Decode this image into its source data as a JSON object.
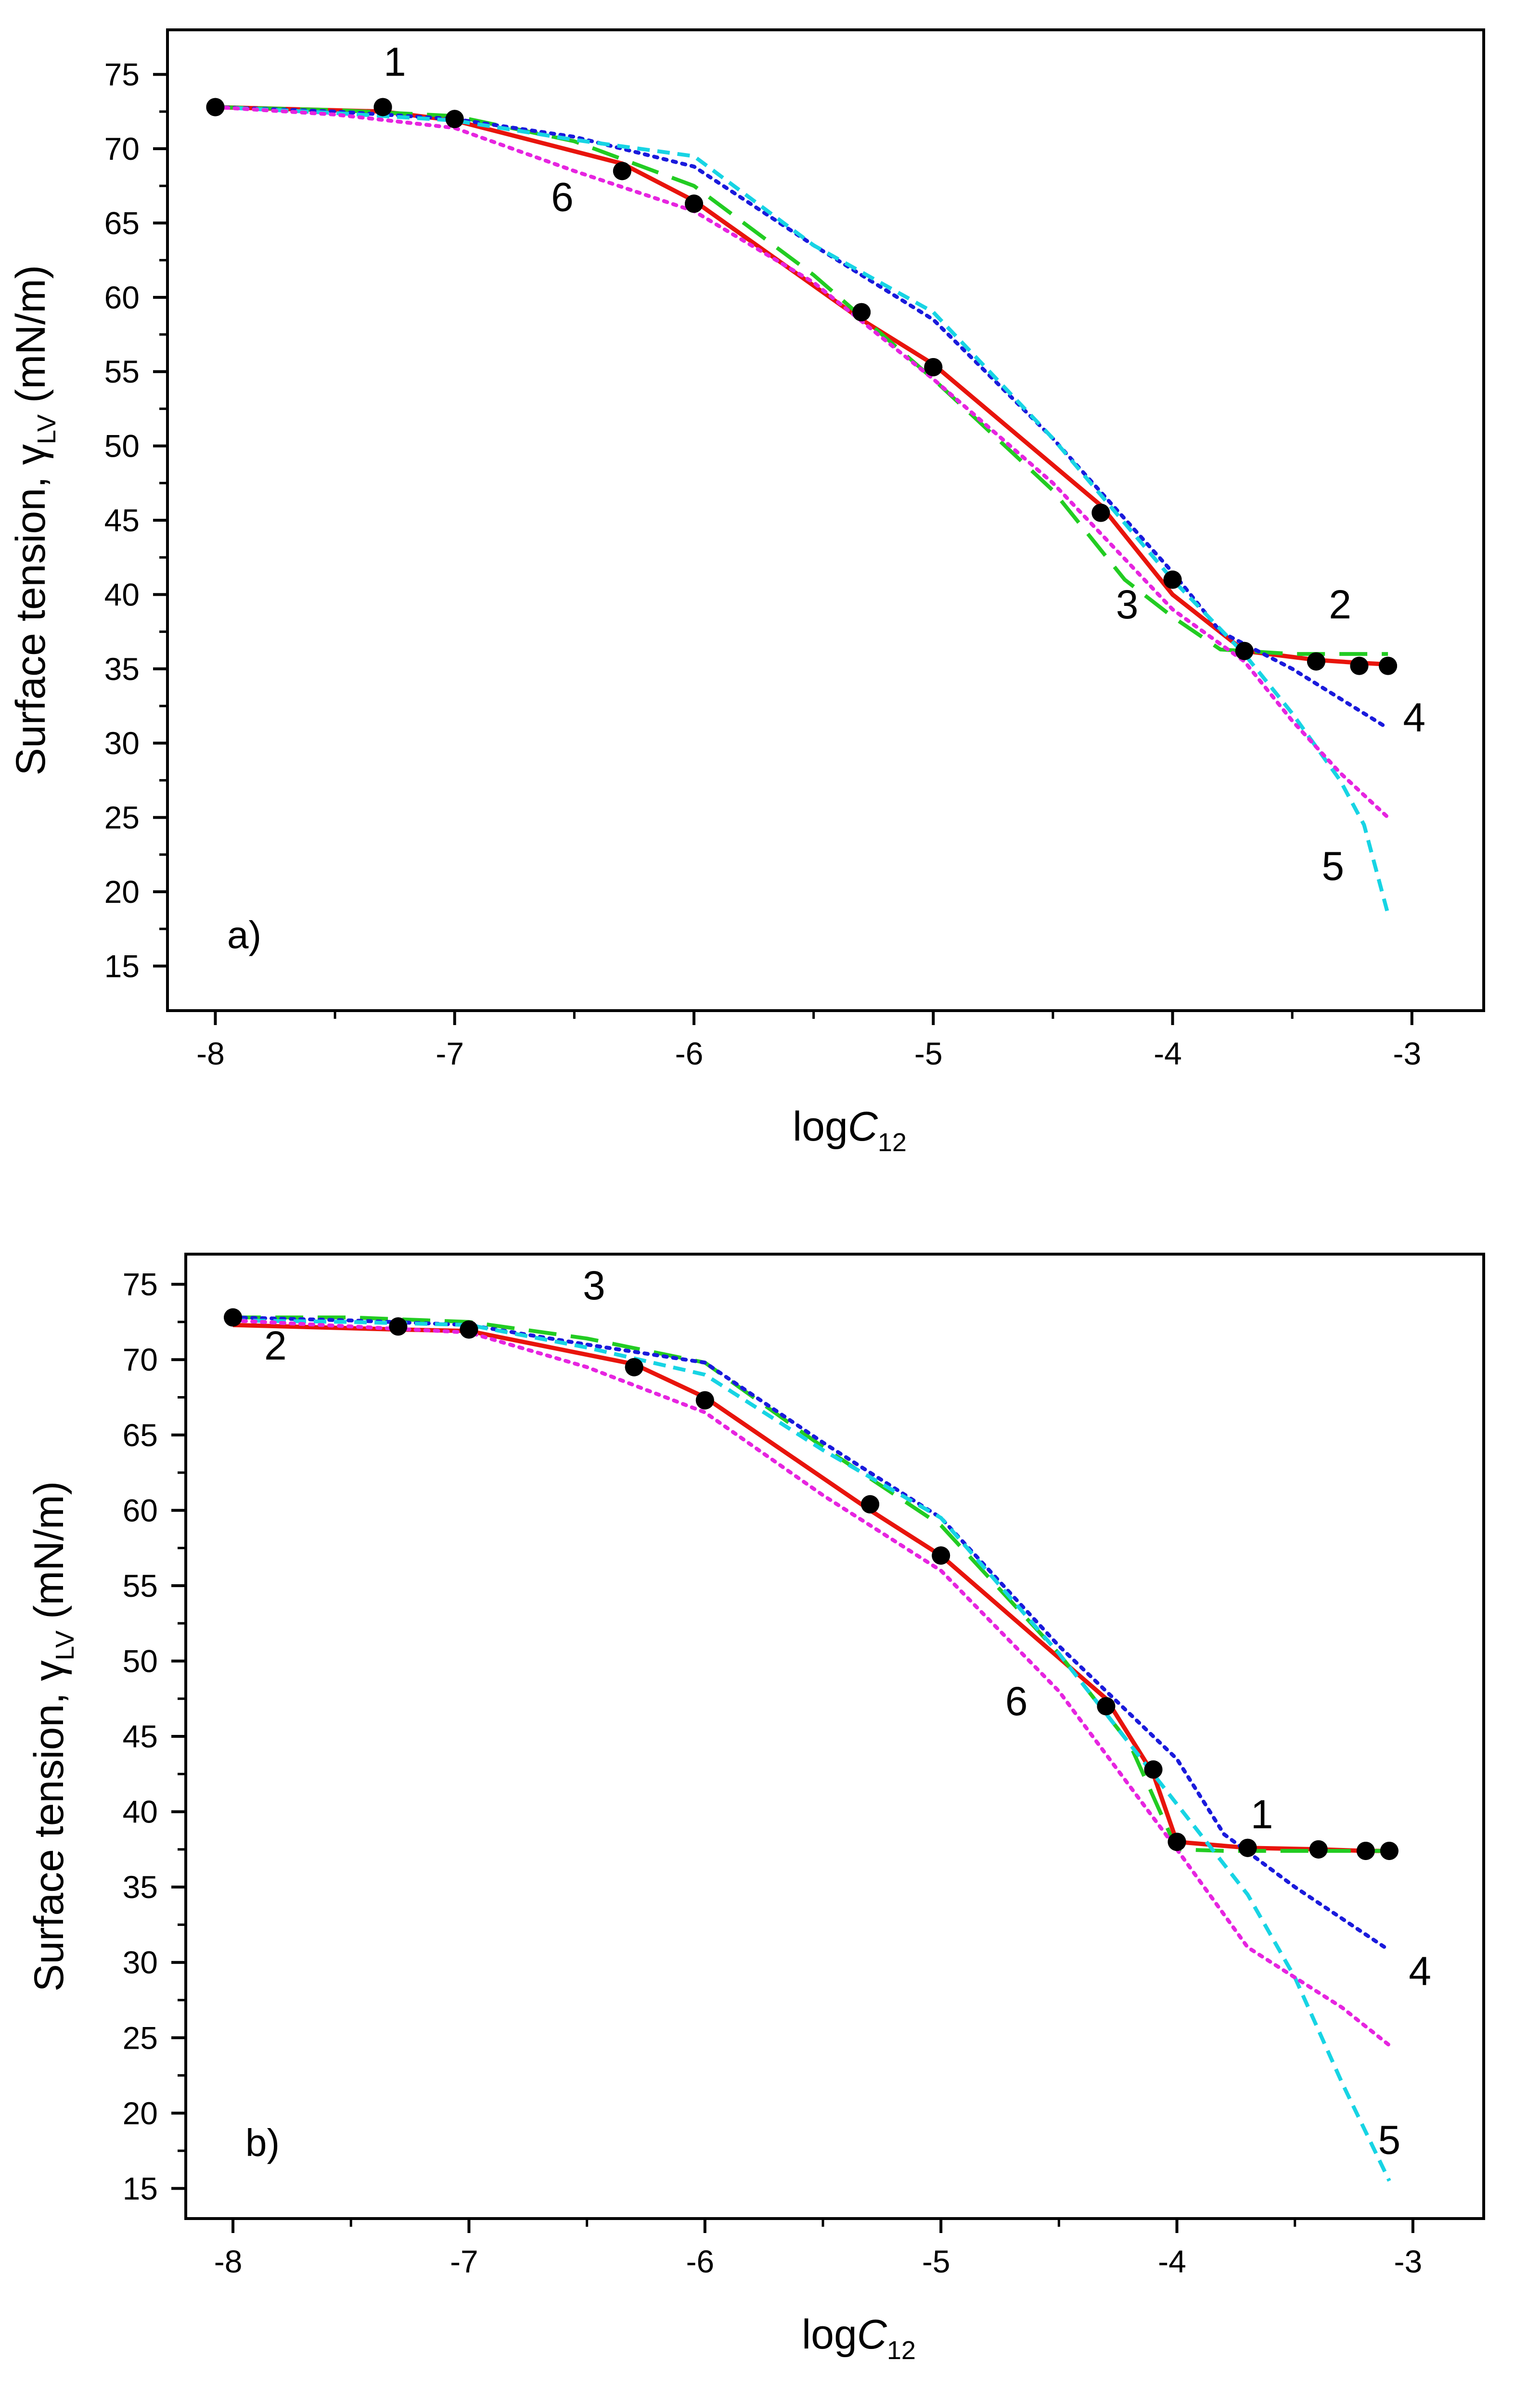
{
  "chart_data": [
    {
      "type": "line",
      "panel_label": "a)",
      "xlabel": {
        "main": "log",
        "italic": "C",
        "sub": "12"
      },
      "ylabel": {
        "main": "Surface tension, γ",
        "sub": "LV",
        "unit": " (mN/m)"
      },
      "xlim": [
        -8.2,
        -2.7
      ],
      "ylim": [
        12,
        78
      ],
      "xticks": [
        -8,
        -7,
        -6,
        -5,
        -4,
        -3
      ],
      "yticks": [
        15,
        20,
        25,
        30,
        35,
        40,
        45,
        50,
        55,
        60,
        65,
        70,
        75
      ],
      "grid": false,
      "series": [
        {
          "name": "1",
          "style": "points",
          "color": "#000000",
          "x": [
            -8,
            -7.3,
            -7,
            -6.3,
            -6,
            -5.3,
            -5,
            -4.3,
            -4,
            -3.7,
            -3.4,
            -3.22,
            -3.1
          ],
          "y": [
            72.8,
            72.8,
            72.0,
            68.5,
            66.3,
            59.0,
            55.3,
            45.5,
            41.0,
            36.2,
            35.5,
            35.2,
            35.2
          ]
        },
        {
          "name": "2",
          "style": "solid",
          "color": "#e8140c",
          "x": [
            -8,
            -7.3,
            -7,
            -6.3,
            -6,
            -5.3,
            -5,
            -4.3,
            -4,
            -3.7,
            -3.4,
            -3.22,
            -3.1
          ],
          "y": [
            72.8,
            72.5,
            71.9,
            69.0,
            66.5,
            58.5,
            55.5,
            46.0,
            40.0,
            36.2,
            35.6,
            35.4,
            35.3
          ]
        },
        {
          "name": "3",
          "style": "longdash",
          "color": "#22cc22",
          "x": [
            -8,
            -7.5,
            -7,
            -6.5,
            -6,
            -5.5,
            -5,
            -4.5,
            -4.2,
            -4.0,
            -3.8,
            -3.5,
            -3.1
          ],
          "y": [
            72.8,
            72.6,
            72.2,
            70.5,
            67.5,
            61.5,
            54.5,
            47.0,
            41.0,
            38.5,
            36.3,
            36.0,
            36.0
          ]
        },
        {
          "name": "4",
          "style": "dot",
          "color": "#1a1adc",
          "x": [
            -8,
            -7.5,
            -7,
            -6.5,
            -6,
            -5.5,
            -5,
            -4.5,
            -4,
            -3.8,
            -3.5,
            -3.1
          ],
          "y": [
            72.8,
            72.5,
            72.0,
            70.8,
            68.8,
            63.5,
            58.5,
            50.5,
            41.5,
            37.5,
            35.0,
            31.0
          ]
        },
        {
          "name": "5",
          "style": "shortdash",
          "color": "#17d4e4",
          "x": [
            -8,
            -7.5,
            -7,
            -6.5,
            -6,
            -5.5,
            -5,
            -4.5,
            -4,
            -3.7,
            -3.5,
            -3.3,
            -3.2,
            -3.1
          ],
          "y": [
            72.8,
            72.4,
            71.9,
            70.6,
            69.5,
            63.5,
            59.0,
            50.5,
            41.0,
            36.0,
            32.0,
            27.5,
            24.5,
            18.5
          ]
        },
        {
          "name": "6",
          "style": "dot",
          "color": "#e624e0",
          "x": [
            -8,
            -7.5,
            -7,
            -6.5,
            -6,
            -5.5,
            -5,
            -4.5,
            -4,
            -3.7,
            -3.5,
            -3.3,
            -3.1
          ],
          "y": [
            72.8,
            72.3,
            71.4,
            68.5,
            65.8,
            61.0,
            54.5,
            47.5,
            39.0,
            35.5,
            31.5,
            28.0,
            25.0
          ]
        }
      ],
      "annotations": [
        {
          "text": "1",
          "x": -7.25,
          "y": 74.9
        },
        {
          "text": "6",
          "x": -6.55,
          "y": 65.8
        },
        {
          "text": "3",
          "x": -4.19,
          "y": 38.4
        },
        {
          "text": "2",
          "x": -3.3,
          "y": 38.4
        },
        {
          "text": "4",
          "x": -2.99,
          "y": 30.8
        },
        {
          "text": "5",
          "x": -3.33,
          "y": 20.8
        }
      ]
    },
    {
      "type": "line",
      "panel_label": "b)",
      "xlabel": {
        "main": "log",
        "italic": "C",
        "sub": "12"
      },
      "ylabel": {
        "main": "Surface tension, γ",
        "sub": "LV",
        "unit": " (mN/m)"
      },
      "xlim": [
        -8.2,
        -2.7
      ],
      "ylim": [
        13,
        77
      ],
      "xticks": [
        -8,
        -7,
        -6,
        -5,
        -4,
        -3
      ],
      "yticks": [
        15,
        20,
        25,
        30,
        35,
        40,
        45,
        50,
        55,
        60,
        65,
        70,
        75
      ],
      "grid": false,
      "series": [
        {
          "name": "1",
          "style": "points",
          "color": "#000000",
          "x": [
            -8,
            -7.3,
            -7,
            -6.3,
            -6,
            -5.3,
            -5,
            -4.3,
            -4.1,
            -4.0,
            -3.7,
            -3.4,
            -3.2,
            -3.1
          ],
          "y": [
            72.8,
            72.2,
            72.0,
            69.5,
            67.3,
            60.4,
            57.0,
            47.0,
            42.8,
            38.0,
            37.6,
            37.5,
            37.4,
            37.4
          ]
        },
        {
          "name": "2",
          "style": "solid",
          "color": "#e8140c",
          "x": [
            -8,
            -7.3,
            -7,
            -6.3,
            -6,
            -5.3,
            -5,
            -4.3,
            -4.1,
            -4.0,
            -3.7,
            -3.4,
            -3.2,
            -3.1
          ],
          "y": [
            72.3,
            72.0,
            71.9,
            69.7,
            67.5,
            60.0,
            57.0,
            47.5,
            42.5,
            38.0,
            37.6,
            37.5,
            37.4,
            37.4
          ]
        },
        {
          "name": "3",
          "style": "longdash",
          "color": "#22cc22",
          "x": [
            -8,
            -7.5,
            -7,
            -6.5,
            -6,
            -5.5,
            -5,
            -4.5,
            -4.2,
            -4.0,
            -3.8,
            -3.5,
            -3.1
          ],
          "y": [
            72.8,
            72.8,
            72.5,
            71.4,
            69.8,
            64.2,
            59.0,
            50.5,
            44.5,
            37.5,
            37.4,
            37.4,
            37.4
          ]
        },
        {
          "name": "4",
          "style": "dot",
          "color": "#1a1adc",
          "x": [
            -8,
            -7.5,
            -7,
            -6.5,
            -6,
            -5.5,
            -5,
            -4.5,
            -4,
            -3.8,
            -3.5,
            -3.1
          ],
          "y": [
            72.8,
            72.6,
            72.3,
            71.0,
            69.8,
            64.5,
            59.5,
            51.0,
            43.5,
            38.5,
            35.0,
            30.8
          ]
        },
        {
          "name": "5",
          "style": "shortdash",
          "color": "#17d4e4",
          "x": [
            -8,
            -7.5,
            -7,
            -6.5,
            -6,
            -5.5,
            -5,
            -4.5,
            -4,
            -3.7,
            -3.5,
            -3.3,
            -3.1
          ],
          "y": [
            72.6,
            72.5,
            72.3,
            70.8,
            69.0,
            64.0,
            59.5,
            50.5,
            40.5,
            34.5,
            29.0,
            22.0,
            15.5
          ]
        },
        {
          "name": "6",
          "style": "dot",
          "color": "#e624e0",
          "x": [
            -8,
            -7.5,
            -7,
            -6.5,
            -6,
            -5.5,
            -5,
            -4.5,
            -4,
            -3.7,
            -3.5,
            -3.3,
            -3.1
          ],
          "y": [
            72.6,
            72.2,
            71.8,
            69.5,
            66.5,
            61.0,
            56.0,
            48.0,
            37.5,
            31.0,
            29.0,
            27.0,
            24.5
          ]
        }
      ],
      "annotations": [
        {
          "text": "2",
          "x": -7.82,
          "y": 70.0
        },
        {
          "text": "3",
          "x": -6.47,
          "y": 74.0
        },
        {
          "text": "6",
          "x": -4.68,
          "y": 46.4
        },
        {
          "text": "1",
          "x": -3.64,
          "y": 38.9
        },
        {
          "text": "4",
          "x": -2.97,
          "y": 28.5
        },
        {
          "text": "5",
          "x": -3.1,
          "y": 17.3
        }
      ]
    }
  ]
}
